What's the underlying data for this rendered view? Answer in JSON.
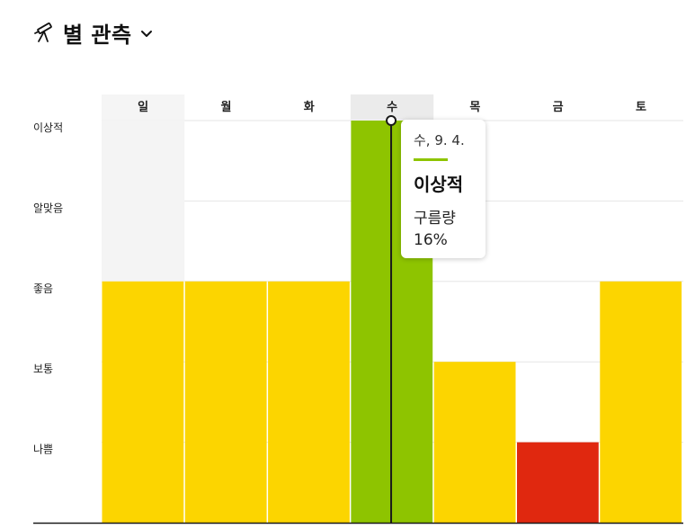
{
  "header": {
    "title": "별 관측",
    "icon": "telescope-icon",
    "dropdown_icon": "chevron-down-icon"
  },
  "chart_data": {
    "type": "bar",
    "categories": [
      "일",
      "월",
      "화",
      "수",
      "목",
      "금",
      "토"
    ],
    "levels": [
      "나쁨",
      "보통",
      "좋음",
      "알맞음",
      "이상적"
    ],
    "values": [
      3,
      3,
      3,
      5,
      2,
      1,
      3
    ],
    "ylim": [
      0,
      5
    ],
    "selected_index": 3,
    "grid": true
  },
  "tooltip": {
    "date": "수, 9. 4.",
    "rating": "이상적",
    "metric_label": "구름량",
    "metric_value": "16%"
  },
  "colors": {
    "ideal": "#8ec400",
    "good": "#fcd500",
    "poor": "#e0280f",
    "header_bg_light": "#f5f5f5",
    "header_bg_selected": "#ebebeb",
    "plot_bg_light": "#f4f4f4",
    "gridline": "#e6e6e6",
    "marker_line": "#1a1a1a"
  }
}
